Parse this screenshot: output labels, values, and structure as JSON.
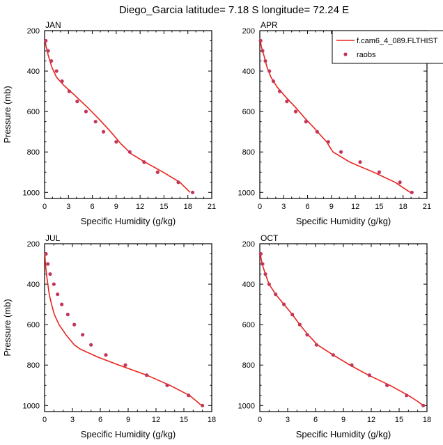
{
  "figure": {
    "title": "Diego_Garcia  latitude= 7.18 S longitude= 72.24 E",
    "model_color": "#e8231b",
    "obs_color": "#c2365a"
  },
  "legend": {
    "model_label": "f.cam6_4_089.FLTHIST",
    "obs_label": "raobs"
  },
  "chart_data": [
    {
      "type": "line",
      "month": "JAN",
      "title": "JAN",
      "xlabel": "Specific Humidity (g/kg)",
      "ylabel": "Pressure (mb)",
      "xlim": [
        0,
        21
      ],
      "ylim": [
        200,
        1030
      ],
      "xticks": [
        0,
        3,
        6,
        9,
        12,
        15,
        18,
        21
      ],
      "yticks": [
        200,
        400,
        600,
        800,
        1000
      ],
      "model": {
        "name": "f.cam6_4_089.FLTHIST",
        "pressure": [
          250,
          280,
          320,
          380,
          430,
          470,
          520,
          580,
          640,
          700,
          760,
          810,
          850,
          900,
          950,
          1000
        ],
        "q": [
          0.05,
          0.2,
          0.45,
          0.9,
          1.5,
          2.4,
          3.8,
          5.4,
          6.9,
          8.3,
          9.6,
          10.9,
          12.6,
          14.9,
          17.0,
          18.3
        ]
      },
      "raobs": {
        "name": "raobs",
        "pressure": [
          250,
          300,
          350,
          400,
          450,
          500,
          550,
          600,
          650,
          700,
          750,
          800,
          850,
          900,
          950,
          1000
        ],
        "q": [
          0.15,
          0.45,
          0.85,
          1.5,
          2.2,
          3.1,
          4.1,
          5.2,
          6.4,
          7.4,
          9.0,
          10.7,
          12.5,
          14.2,
          16.8,
          18.6
        ]
      }
    },
    {
      "type": "line",
      "month": "APR",
      "title": "APR",
      "xlabel": "Specific Humidity (g/kg)",
      "ylabel": "Pressure (mb)",
      "xlim": [
        0,
        21
      ],
      "ylim": [
        200,
        1030
      ],
      "xticks": [
        0,
        3,
        6,
        9,
        12,
        15,
        18,
        21
      ],
      "yticks": [
        200,
        400,
        600,
        800,
        1000
      ],
      "model": {
        "name": "f.cam6_4_089.FLTHIST",
        "pressure": [
          250,
          280,
          320,
          380,
          430,
          480,
          530,
          580,
          630,
          680,
          720,
          750,
          770,
          800,
          850,
          900,
          950,
          1000
        ],
        "q": [
          0.05,
          0.2,
          0.5,
          0.9,
          1.4,
          2.2,
          3.3,
          4.5,
          5.6,
          6.8,
          7.7,
          8.4,
          8.7,
          9.2,
          11.3,
          14.3,
          17.0,
          18.9
        ]
      },
      "raobs": {
        "name": "raobs",
        "pressure": [
          250,
          300,
          350,
          400,
          450,
          500,
          550,
          600,
          650,
          700,
          750,
          800,
          850,
          900,
          950,
          1000
        ],
        "q": [
          0.1,
          0.35,
          0.7,
          1.2,
          1.7,
          2.5,
          3.4,
          4.5,
          5.8,
          7.2,
          8.6,
          10.2,
          12.6,
          15.0,
          17.6,
          19.1
        ]
      }
    },
    {
      "type": "line",
      "month": "JUL",
      "title": "JUL",
      "xlabel": "Specific Humidity (g/kg)",
      "ylabel": "Pressure (mb)",
      "xlim": [
        0,
        18
      ],
      "ylim": [
        200,
        1030
      ],
      "xticks": [
        0,
        3,
        6,
        9,
        12,
        15,
        18
      ],
      "yticks": [
        200,
        400,
        600,
        800,
        1000
      ],
      "model": {
        "name": "f.cam6_4_089.FLTHIST",
        "pressure": [
          250,
          300,
          350,
          400,
          450,
          500,
          550,
          600,
          650,
          700,
          720,
          760,
          800,
          850,
          900,
          950,
          980,
          1000
        ],
        "q": [
          0.03,
          0.1,
          0.2,
          0.35,
          0.5,
          0.75,
          1.05,
          1.55,
          2.3,
          3.2,
          3.8,
          5.7,
          8.0,
          11.0,
          13.5,
          15.6,
          16.4,
          16.9
        ]
      },
      "raobs": {
        "name": "raobs",
        "pressure": [
          250,
          300,
          350,
          400,
          450,
          500,
          550,
          600,
          650,
          700,
          750,
          800,
          850,
          900,
          950,
          1000
        ],
        "q": [
          0.15,
          0.35,
          0.6,
          1.0,
          1.4,
          1.85,
          2.5,
          3.2,
          4.1,
          5.0,
          6.6,
          8.7,
          11.0,
          13.2,
          15.5,
          17.0
        ]
      }
    },
    {
      "type": "line",
      "month": "OCT",
      "title": "OCT",
      "xlabel": "Specific Humidity (g/kg)",
      "ylabel": "Pressure (mb)",
      "xlim": [
        0,
        18
      ],
      "ylim": [
        200,
        1030
      ],
      "xticks": [
        0,
        3,
        6,
        9,
        12,
        15,
        18
      ],
      "yticks": [
        200,
        400,
        600,
        800,
        1000
      ],
      "model": {
        "name": "f.cam6_4_089.FLTHIST",
        "pressure": [
          250,
          300,
          350,
          400,
          450,
          500,
          550,
          600,
          650,
          700,
          750,
          800,
          850,
          900,
          950,
          980,
          1000
        ],
        "q": [
          0.05,
          0.25,
          0.6,
          1.0,
          1.7,
          2.6,
          3.5,
          4.3,
          5.2,
          6.2,
          7.9,
          9.7,
          11.7,
          14.0,
          16.0,
          17.0,
          17.6
        ]
      },
      "raobs": {
        "name": "raobs",
        "pressure": [
          250,
          300,
          350,
          400,
          450,
          500,
          550,
          600,
          650,
          700,
          750,
          800,
          850,
          900,
          950,
          1000
        ],
        "q": [
          0.1,
          0.3,
          0.6,
          1.0,
          1.7,
          2.6,
          3.5,
          4.3,
          5.1,
          6.1,
          7.9,
          9.9,
          11.8,
          13.7,
          15.8,
          17.6
        ]
      }
    }
  ]
}
